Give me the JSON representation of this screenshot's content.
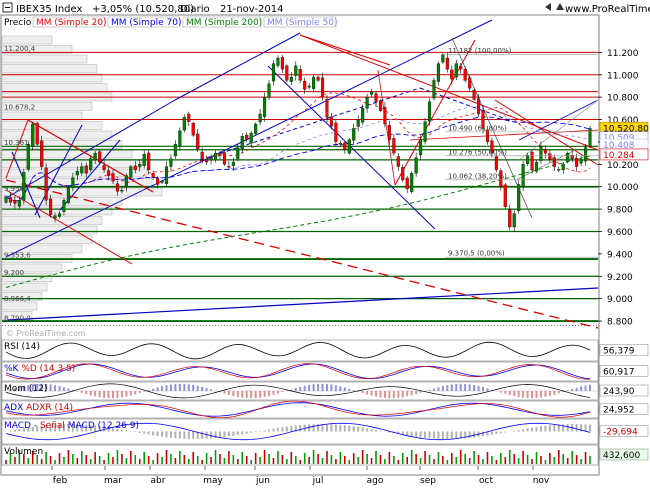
{
  "header": {
    "symbol": "IBEX35 Index",
    "change": "+3,05% (10.520,80)",
    "timeframe": "Diario",
    "date": "21-nov-2014",
    "website": "www.ProRealTime.com"
  },
  "legend": {
    "price": "Precio",
    "ma20": "MM (Simple 20)",
    "ma70": "MM (Simple 70)",
    "ma200": "MM (Simple 200)",
    "ma50": "MM (Simple 50)"
  },
  "colors": {
    "ma20": "#ff0000",
    "ma70": "#0000ff",
    "ma200": "#008000",
    "ma50": "#8080ff",
    "candle_up": "#008000",
    "candle_down": "#ff0000",
    "hline_green": "#006400",
    "hline_red": "#cc0000",
    "trend_blue": "#0000cc",
    "trend_red": "#dd0000"
  },
  "chart_data": {
    "type": "candlestick",
    "symbol": "IBEX35 Index",
    "months": [
      "feb",
      "mar",
      "abr",
      "may",
      "jun",
      "jul",
      "ago",
      "sep",
      "oct",
      "nov"
    ],
    "y_axis_ticks": [
      8800,
      9000,
      9200,
      9400,
      9600,
      9800,
      10000,
      10200,
      10400,
      10600,
      10800,
      11000,
      11200
    ],
    "ylim": [
      8720,
      11400
    ],
    "last_price": "10.520,80",
    "right_labels": [
      {
        "text": "10.520,80",
        "value": 10520.8,
        "style": "last"
      },
      {
        "text": "10.509",
        "value": 10509,
        "style": "ma50"
      },
      {
        "text": "10.408",
        "value": 10408,
        "style": "ma70"
      },
      {
        "text": "10.284",
        "value": 10284,
        "style": "ma20"
      }
    ],
    "left_levels": [
      {
        "text": "11.200,4",
        "value": 11200.4
      },
      {
        "text": "10.678,2",
        "value": 10678.2
      },
      {
        "text": "10.361",
        "value": 10361
      },
      {
        "text": "9.950",
        "value": 9950
      },
      {
        "text": "9.353,6",
        "value": 9353.6
      },
      {
        "text": "9.200",
        "value": 9200
      },
      {
        "text": "8.966,4",
        "value": 8966.4
      },
      {
        "text": "8.790,0",
        "value": 8790.0
      }
    ],
    "fibonacci": [
      {
        "text": "11.182 (100,00%)",
        "value": 11182
      },
      {
        "text": "10.490 (61,80%)",
        "value": 10490
      },
      {
        "text": "10.276 (50,00%)",
        "value": 10276
      },
      {
        "text": "10.062 (38,20%)",
        "value": 10062
      },
      {
        "text": "9.370,5 (0,00%)",
        "value": 9370.5
      }
    ],
    "green_levels": [
      8800,
      9000,
      9200,
      9353.6,
      9600,
      9800,
      10000,
      10240,
      10330,
      10361
    ],
    "red_levels": [
      10600,
      10800,
      10850,
      11000,
      11200
    ],
    "series_close": [
      9910,
      9860,
      9850,
      9880,
      10130,
      10380,
      10560,
      10380,
      10180,
      9880,
      9750,
      9740,
      9760,
      9880,
      9990,
      10080,
      10140,
      10180,
      10120,
      10250,
      10300,
      10220,
      10150,
      10100,
      10050,
      9960,
      9970,
      10100,
      10180,
      10150,
      10200,
      10290,
      10150,
      10080,
      10020,
      10050,
      10180,
      10250,
      10380,
      10500,
      10620,
      10580,
      10460,
      10340,
      10250,
      10220,
      10260,
      10300,
      10280,
      10200,
      10180,
      10220,
      10350,
      10450,
      10420,
      10480,
      10560,
      10650,
      10800,
      10920,
      11100,
      11150,
      11050,
      10950,
      10980,
      11080,
      10950,
      10870,
      10900,
      10980,
      10950,
      10800,
      10620,
      10540,
      10400,
      10380,
      10330,
      10420,
      10520,
      10600,
      10700,
      10800,
      10850,
      10760,
      10680,
      10560,
      10420,
      10300,
      10180,
      10060,
      9980,
      10120,
      10260,
      10420,
      10580,
      10760,
      10950,
      11100,
      11180,
      11050,
      10960,
      11100,
      11050,
      10950,
      10880,
      10780,
      10650,
      10520,
      10400,
      10300,
      10150,
      10000,
      9820,
      9640,
      9760,
      10020,
      10200,
      10280,
      10150,
      10220,
      10360,
      10300,
      10240,
      10180,
      10150,
      10200,
      10300,
      10250,
      10180,
      10240,
      10350,
      10520.8
    ],
    "indicators": [
      {
        "name": "RSI (14)",
        "value": "56,379"
      },
      {
        "name": "%K %D (14 3 5)",
        "label_k": "%K",
        "label_d": "%D (14 3 5)",
        "value": "60,917"
      },
      {
        "name": "Mom (12)",
        "value": "243,90"
      },
      {
        "name": "ADX ADXR (14)",
        "label_adx": "ADX",
        "label_adxr": "ADXR (14)",
        "value": "24,952"
      },
      {
        "name": "MACD - señal MACD (12 26 9)",
        "label_macd": "MACD -",
        "label_signal": "Señal",
        "label_macd2": "MACD (12 26 9)",
        "value": "-29,694"
      },
      {
        "name": "Volumen",
        "value": "432,600"
      }
    ],
    "watermark": "© ProRealTime.com"
  }
}
